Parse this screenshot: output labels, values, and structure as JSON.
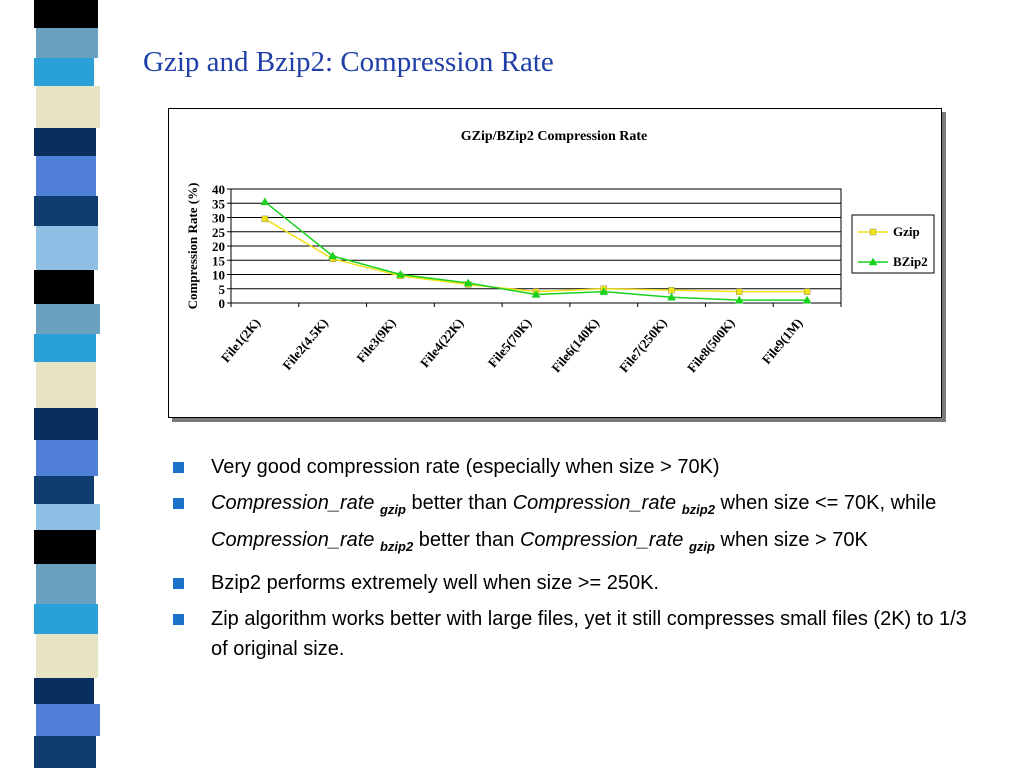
{
  "slide": {
    "title": "Gzip and Bzip2:  Compression Rate",
    "strip_colors": [
      "#6aa0c0",
      "#0f3e6e",
      "#e6e4c2",
      "#000000",
      "#4f7fd6",
      "#2aa0d8",
      "#8ec0e6",
      "#0b2f5c"
    ]
  },
  "chart_data": {
    "type": "line",
    "title": "GZip/BZip2 Compression Rate",
    "xlabel": "",
    "ylabel": "Compression Rate (%)",
    "ylim": [
      0,
      40
    ],
    "yticks": [
      0,
      5,
      10,
      15,
      20,
      25,
      30,
      35,
      40
    ],
    "grid": true,
    "legend_position": "right",
    "categories": [
      "File1(2K)",
      "File2(4.5K)",
      "File3(9K)",
      "File4(22K)",
      "File5(70K)",
      "File6(140K)",
      "File7(250K)",
      "File8(500K)",
      "File9(1M)"
    ],
    "series": [
      {
        "name": "Gzip",
        "color": "#f2e21a",
        "marker": "square",
        "values": [
          29.5,
          15.5,
          9.5,
          6.5,
          4,
          5,
          4.5,
          4,
          4
        ]
      },
      {
        "name": "BZip2",
        "color": "#19d21e",
        "marker": "triangle",
        "values": [
          35.5,
          16.5,
          10,
          7,
          3,
          4,
          2,
          1,
          1
        ]
      }
    ]
  },
  "bullets": [
    {
      "text": "Very good compression rate (especially when size > 70K)"
    },
    {
      "a": "Compression_rate",
      "b": "gzip",
      "c": " better than ",
      "d": "Compression_rate",
      "e": "bzip2",
      "f": " when size <= 70K, while ",
      "g": "Compression_rate",
      "h": "bzip2",
      "i": " better than ",
      "j": "Compression_rate",
      "k": "gzip",
      "l": " when size > 70K"
    },
    {
      "text": "Bzip2 performs extremely well when size >= 250K."
    },
    {
      "text": "Zip algorithm works better with large files, yet it still compresses small files (2K) to 1/3 of original size."
    }
  ]
}
